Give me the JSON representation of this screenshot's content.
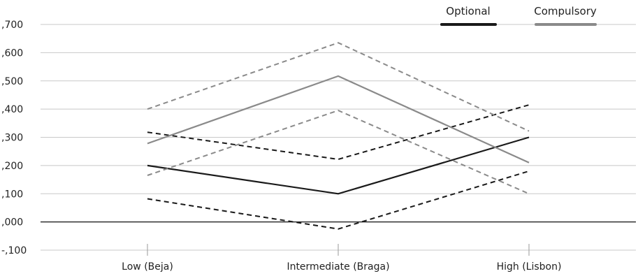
{
  "chart_data": {
    "type": "line",
    "categories": [
      "Low (Beja)",
      "Intermediate (Braga)",
      "High (Lisbon)"
    ],
    "ylim": [
      -0.1,
      0.7
    ],
    "ytick_values": [
      -0.1,
      0.0,
      0.1,
      0.2,
      0.3,
      0.4,
      0.5,
      0.6,
      0.7
    ],
    "ytick_labels": [
      "-,100",
      ",000",
      ",100",
      ",200",
      ",300",
      ",400",
      ",500",
      ",600",
      ",700"
    ],
    "grid": true,
    "legend_position": "top-right",
    "legend": [
      {
        "label": "Optional",
        "color": "#1a1a1a"
      },
      {
        "label": "Compulsory",
        "color": "#8a8a8a"
      }
    ],
    "series": [
      {
        "name": "Optional",
        "group": "Optional",
        "style": "solid",
        "color": "#1a1a1a",
        "values": [
          0.2,
          0.1,
          0.3
        ]
      },
      {
        "group": "Optional",
        "style": "dashed",
        "color": "#1a1a1a",
        "values": [
          0.318,
          0.222,
          0.415
        ]
      },
      {
        "group": "Optional",
        "style": "dashed",
        "color": "#1a1a1a",
        "values": [
          0.082,
          -0.025,
          0.18
        ]
      },
      {
        "name": "Compulsory",
        "group": "Compulsory",
        "style": "solid",
        "color": "#8a8a8a",
        "values": [
          0.278,
          0.517,
          0.21
        ]
      },
      {
        "group": "Compulsory",
        "style": "dashed",
        "color": "#8a8a8a",
        "values": [
          0.4,
          0.635,
          0.322
        ]
      },
      {
        "group": "Compulsory",
        "style": "dashed",
        "color": "#8a8a8a",
        "values": [
          0.165,
          0.395,
          0.1
        ]
      }
    ]
  }
}
